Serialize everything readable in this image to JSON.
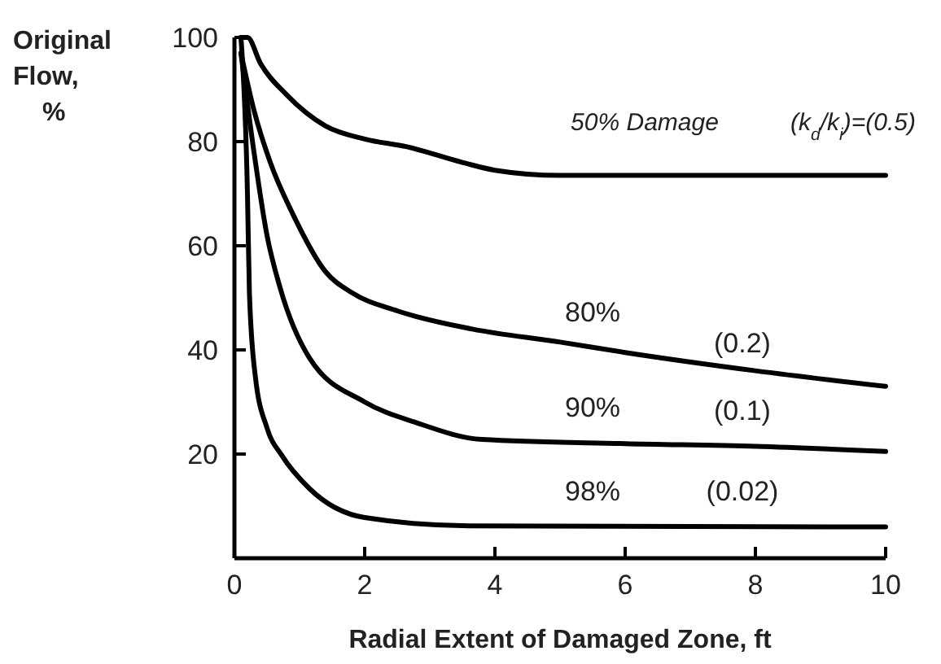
{
  "chart_data": {
    "type": "line",
    "xlabel": "Radial Extent of Damaged Zone, ft",
    "ylabel": "Original Flow, %",
    "xlim": [
      0,
      10
    ],
    "ylim": [
      0,
      100
    ],
    "xticks": [
      0,
      2,
      4,
      6,
      8,
      10
    ],
    "yticks": [
      20,
      40,
      60,
      80,
      100
    ],
    "grid": false,
    "marker": "none",
    "line_style": "solid",
    "series": [
      {
        "color": "#000000",
        "x": [
          0.1,
          0.2,
          0.4,
          0.8,
          1.4,
          2,
          2.65,
          3.5,
          4,
          5,
          10
        ],
        "values": [
          100,
          100,
          95,
          89,
          83,
          80.5,
          79,
          76,
          74.5,
          73.5,
          73.5
        ]
      },
      {
        "color": "#000000",
        "x": [
          0.1,
          0.3,
          0.55,
          0.9,
          1.4,
          1.8,
          2.5,
          3.65,
          5,
          6,
          8,
          10
        ],
        "values": [
          97,
          86,
          76,
          66,
          55,
          51,
          47.5,
          44,
          41.5,
          39.5,
          36,
          33
        ]
      },
      {
        "color": "#000000",
        "x": [
          0.1,
          0.3,
          0.5,
          0.7,
          1.15,
          2,
          2.8,
          3.8,
          6,
          8,
          10
        ],
        "values": [
          97,
          78,
          62,
          52,
          38.5,
          30,
          26,
          22.8,
          22,
          21.5,
          20.5
        ]
      },
      {
        "color": "#000000",
        "x": [
          0.1,
          0.2,
          0.23,
          0.32,
          0.5,
          0.73,
          1.15,
          2,
          3.6,
          10
        ],
        "values": [
          100,
          70,
          51,
          35,
          25,
          19.7,
          13.4,
          7.8,
          6.2,
          6
        ]
      }
    ],
    "annotations": [
      "50% Damage",
      "(k$_{d}$/k$_{i}$)=(0.5)",
      "80%",
      "(0.2)",
      "90%",
      "(0.1)",
      "98%",
      "(0.02)"
    ]
  }
}
